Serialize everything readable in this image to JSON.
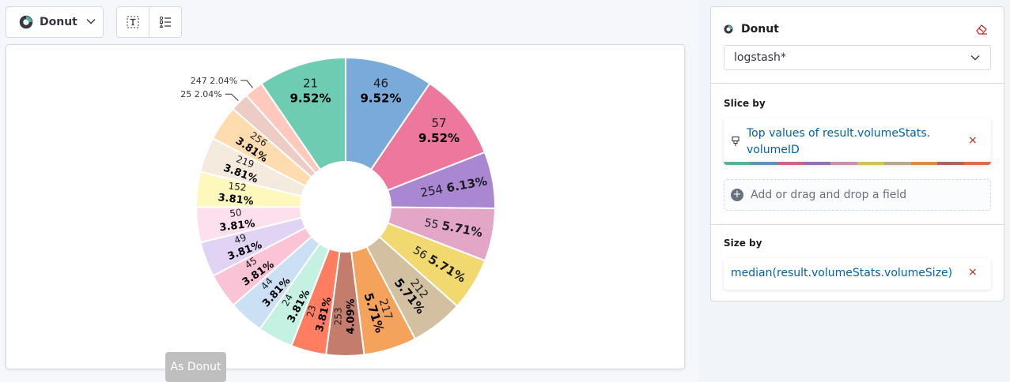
{
  "toolbar": {
    "chart_type_label": "Donut"
  },
  "chart_data": {
    "type": "pie",
    "subtype": "donut",
    "series": [
      {
        "name": "21",
        "value": 9.52,
        "label": "9.52%",
        "color": "#6dccb1"
      },
      {
        "name": "46",
        "value": 9.52,
        "label": "9.52%",
        "color": "#79aad9"
      },
      {
        "name": "57",
        "value": 9.52,
        "label": "9.52%",
        "color": "#ee789d"
      },
      {
        "name": "254",
        "value": 6.13,
        "label": "6.13%",
        "color": "#a987d1"
      },
      {
        "name": "55",
        "value": 5.71,
        "label": "5.71%",
        "color": "#e4a6c7"
      },
      {
        "name": "56",
        "value": 5.71,
        "label": "5.71%",
        "color": "#f1d86f"
      },
      {
        "name": "212",
        "value": 5.71,
        "label": "5.71%",
        "color": "#d2c0a0"
      },
      {
        "name": "217",
        "value": 5.71,
        "label": "5.71%",
        "color": "#f5a35c"
      },
      {
        "name": "253",
        "value": 4.09,
        "label": "4.09%",
        "color": "#c47c6c"
      },
      {
        "name": "23",
        "value": 3.81,
        "label": "3.81%",
        "color": "#ff7e62"
      },
      {
        "name": "24",
        "value": 3.81,
        "label": "3.81%",
        "color": "#c4f1e1"
      },
      {
        "name": "44",
        "value": 3.81,
        "label": "3.81%",
        "color": "#cce0f5"
      },
      {
        "name": "45",
        "value": 3.81,
        "label": "3.81%",
        "color": "#fac3d6"
      },
      {
        "name": "49",
        "value": 3.81,
        "label": "3.81%",
        "color": "#e1d3f4"
      },
      {
        "name": "50",
        "value": 3.81,
        "label": "3.81%",
        "color": "#fce0ee"
      },
      {
        "name": "152",
        "value": 3.81,
        "label": "3.81%",
        "color": "#fff8bd"
      },
      {
        "name": "219",
        "value": 3.81,
        "label": "3.81%",
        "color": "#f4eade"
      },
      {
        "name": "256",
        "value": 3.81,
        "label": "3.81%",
        "color": "#ffdbb0"
      },
      {
        "name": "25",
        "value": 2.04,
        "label": "2.04%",
        "color": "#ecccc4"
      },
      {
        "name": "247",
        "value": 2.04,
        "label": "2.04%",
        "color": "#ffc9be"
      }
    ]
  },
  "chart_actions": {
    "as_donut": "As Donut"
  },
  "config_panel": {
    "title": "Donut",
    "index_pattern": "logstash*",
    "slice_by": {
      "heading": "Slice by",
      "field_line1": "Top values of result.volumeStats.",
      "field_line2": "volumeID",
      "palette": [
        "#54b399",
        "#6092c0",
        "#d36086",
        "#9170b8",
        "#ca8eae",
        "#d6bf57",
        "#b9a888",
        "#da8b45",
        "#aa6556",
        "#e7664c"
      ]
    },
    "add_field": "Add or drag and drop a field",
    "size_by": {
      "heading": "Size by",
      "field": "median(result.volumeStats.volumeSize)"
    },
    "remove_glyph": "×"
  }
}
